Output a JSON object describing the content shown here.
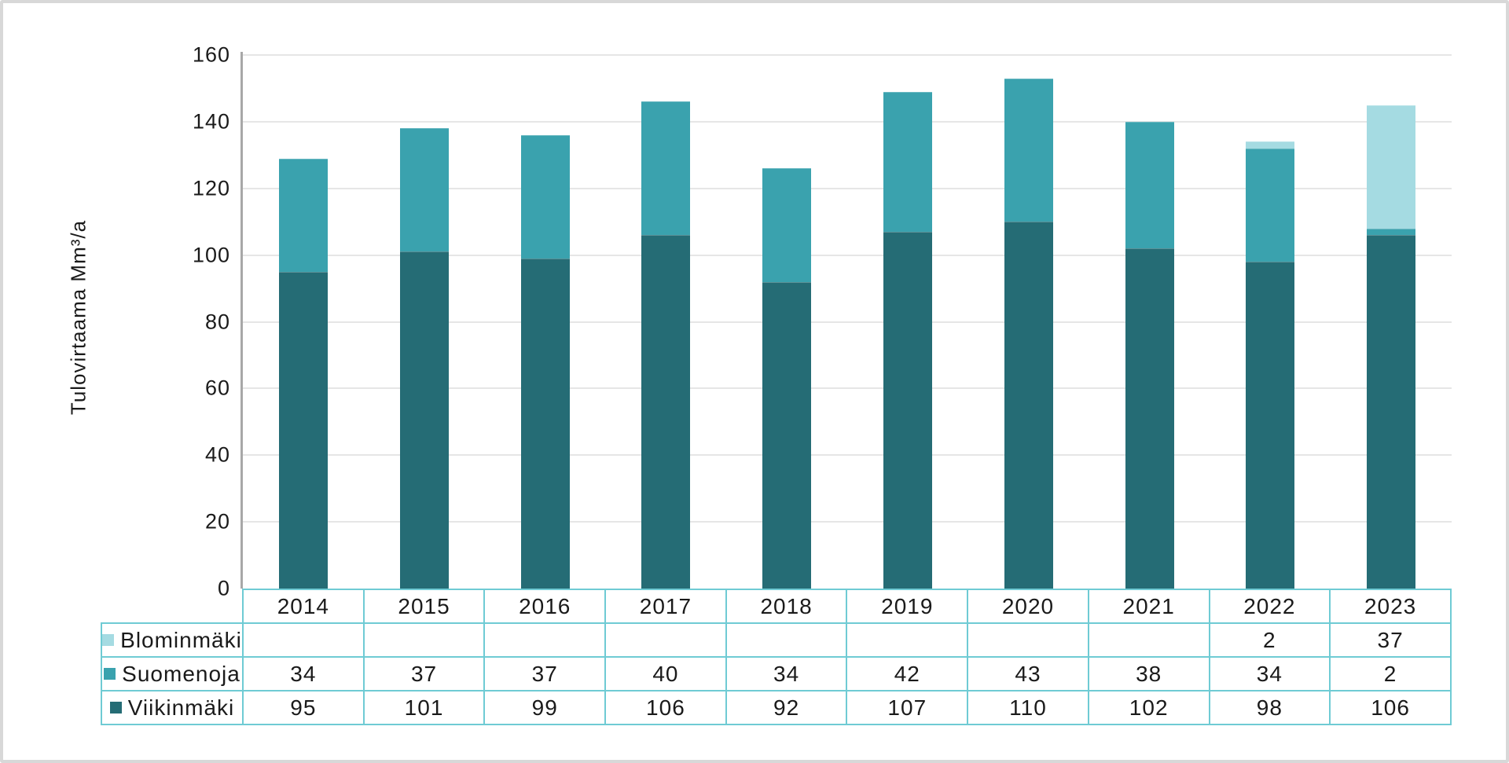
{
  "chart_data": {
    "type": "bar",
    "stacked": true,
    "title": "",
    "xlabel": "",
    "ylabel": "Tulovirtaama Mm³/a",
    "ylim": [
      0,
      160
    ],
    "ytick_step": 20,
    "grid": true,
    "legend_position": "table-left",
    "categories": [
      "2014",
      "2015",
      "2016",
      "2017",
      "2018",
      "2019",
      "2020",
      "2021",
      "2022",
      "2023"
    ],
    "series": [
      {
        "name": "Blominmäki",
        "color": "#A5DBE2",
        "values": [
          null,
          null,
          null,
          null,
          null,
          null,
          null,
          null,
          2,
          37
        ]
      },
      {
        "name": "Suomenoja",
        "color": "#3AA2AE",
        "values": [
          34,
          37,
          37,
          40,
          34,
          42,
          43,
          38,
          34,
          2
        ]
      },
      {
        "name": "Viikinmäki",
        "color": "#256C75",
        "values": [
          95,
          101,
          99,
          106,
          92,
          107,
          110,
          102,
          98,
          106
        ]
      }
    ],
    "stack_order_bottom_to_top": [
      "Viikinmäki",
      "Suomenoja",
      "Blominmäki"
    ],
    "totals": [
      129,
      138,
      136,
      146,
      126,
      149,
      153,
      140,
      134,
      145
    ]
  },
  "colors": {
    "blominmaki": "#A5DBE2",
    "suomenoja": "#3AA2AE",
    "viikinmaki": "#256C75",
    "axis_line": "#A8A8A8",
    "gridline": "#E6E6E6",
    "table_border": "#6FCBD4",
    "text": "#1A1A1A",
    "frame_border": "#D8D8D8",
    "background": "#FFFFFF"
  }
}
